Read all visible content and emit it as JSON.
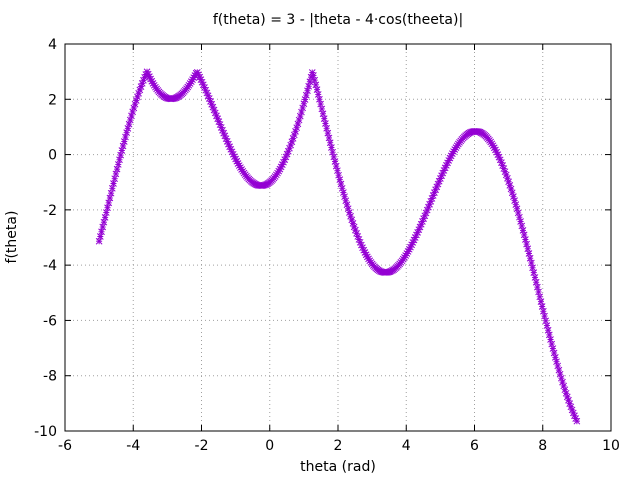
{
  "chart_data": {
    "type": "scatter",
    "title": "f(theta) = 3 - |theta - 4·cos(theeta)|",
    "xlabel": "theta (rad)",
    "ylabel": "f(theta)",
    "xlim": [
      -6,
      10
    ],
    "ylim": [
      -10,
      4
    ],
    "x_ticks": [
      -6,
      -4,
      -2,
      0,
      2,
      4,
      6,
      8,
      10
    ],
    "y_ticks": [
      -10,
      -8,
      -6,
      -4,
      -2,
      0,
      2,
      4
    ],
    "grid": true,
    "legend": "none",
    "marker": "asterisk",
    "series": [
      {
        "color": "#9400d3",
        "x_range": [
          -5,
          9
        ],
        "samples": 400,
        "function": "3 - |theta - 4*cos(theta)|"
      }
    ]
  }
}
